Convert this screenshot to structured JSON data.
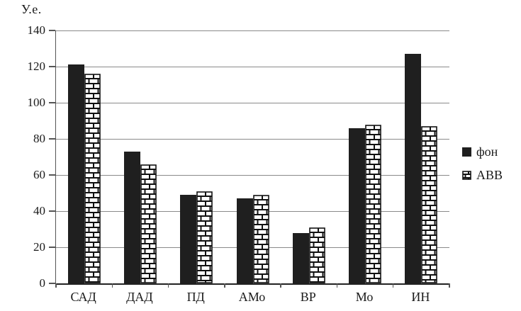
{
  "unit_label": "У.е.",
  "chart_data": {
    "type": "bar",
    "title": "",
    "ylabel": "У.е.",
    "xlabel": "",
    "categories": [
      "САД",
      "ДАД",
      "ПД",
      "АМо",
      "ВР",
      "Мо",
      "ИН"
    ],
    "series": [
      {
        "name": "фон",
        "style": "solid",
        "color": "#1f1f1f",
        "values": [
          121,
          73,
          49,
          47,
          28,
          86,
          127
        ]
      },
      {
        "name": "АВВ",
        "style": "brick",
        "color": "#ffffff",
        "values": [
          116,
          66,
          51,
          49,
          31,
          88,
          87
        ]
      }
    ],
    "ylim": [
      0,
      140
    ],
    "yticks": [
      0,
      20,
      40,
      60,
      80,
      100,
      120,
      140
    ],
    "grid": true,
    "legend_position": "right",
    "colors": {
      "gridline": "#8a8a8a",
      "axis": "#555555",
      "baseline": "#222222",
      "bar_solid": "#1f1f1f",
      "brick_mortar": "#111111",
      "brick_fill": "#ffffff",
      "text": "#1a1a1a",
      "background": "#ffffff"
    }
  }
}
